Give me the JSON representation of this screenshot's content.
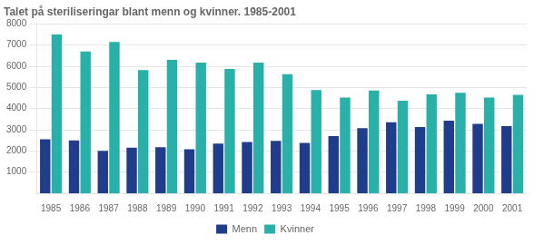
{
  "chart_data": {
    "type": "bar",
    "title": "Talet på steriliseringar blant menn og kvinner. 1985-2001",
    "categories": [
      "1985",
      "1986",
      "1987",
      "1988",
      "1989",
      "1990",
      "1991",
      "1992",
      "1993",
      "1994",
      "1995",
      "1996",
      "1997",
      "1998",
      "1999",
      "2000",
      "2001"
    ],
    "series": [
      {
        "name": "Menn",
        "color": "#1f3d8a",
        "values": [
          2550,
          2500,
          2000,
          2150,
          2175,
          2075,
          2350,
          2425,
          2475,
          2375,
          2700,
          3075,
          3350,
          3125,
          3425,
          3275,
          3175
        ]
      },
      {
        "name": "Kvinner",
        "color": "#29b0a8",
        "values": [
          7500,
          6700,
          7150,
          5825,
          6300,
          6175,
          5875,
          6175,
          5625,
          4875,
          4525,
          4850,
          4375,
          4675,
          4750,
          4525,
          4650
        ]
      }
    ],
    "ylim": [
      0,
      8000
    ],
    "yticks": [
      1000,
      2000,
      3000,
      4000,
      5000,
      6000,
      7000,
      8000
    ],
    "grid": true,
    "legend": "bottom"
  }
}
